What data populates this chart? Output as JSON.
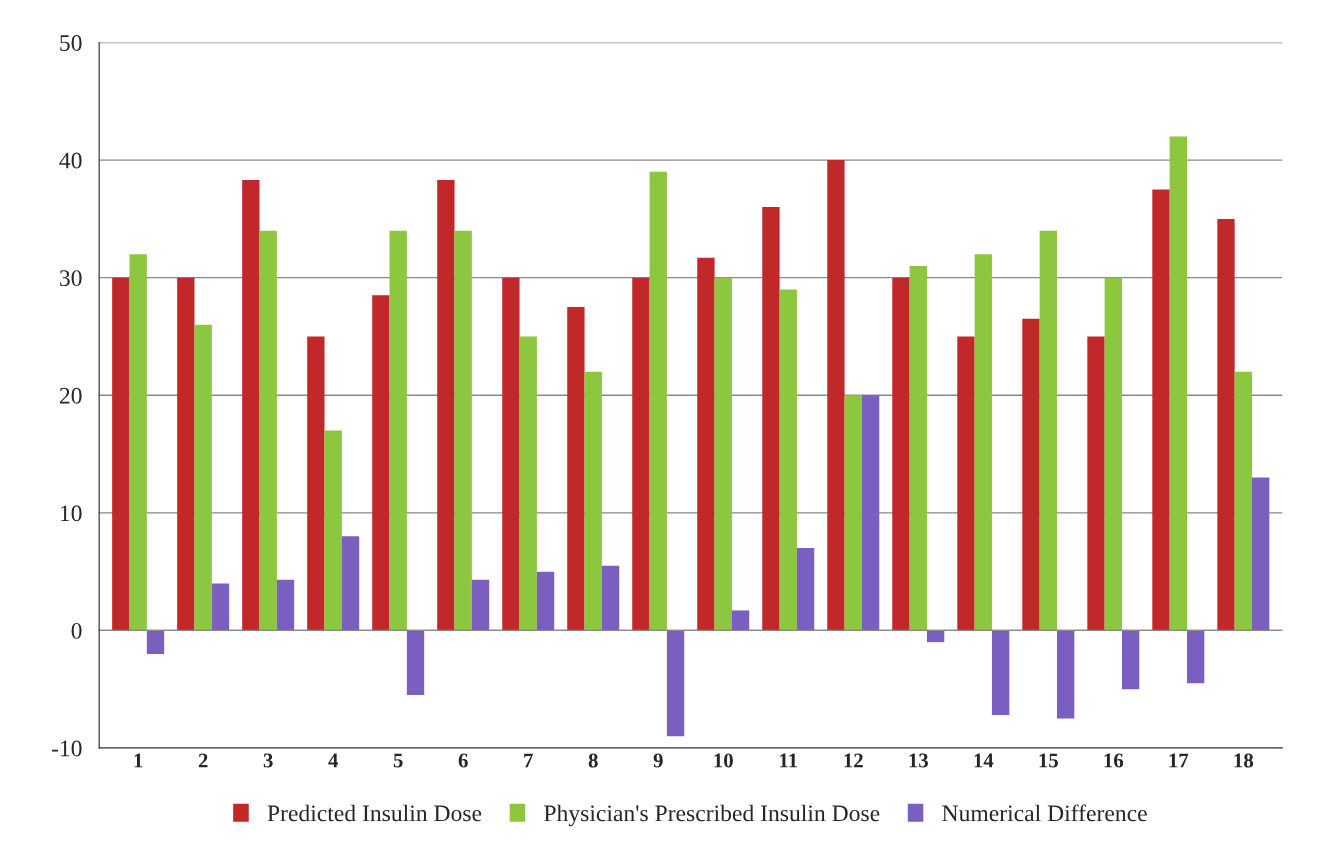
{
  "chart_data": {
    "type": "bar",
    "categories": [
      "1",
      "2",
      "3",
      "4",
      "5",
      "6",
      "7",
      "8",
      "9",
      "10",
      "11",
      "12",
      "13",
      "14",
      "15",
      "16",
      "17",
      "18"
    ],
    "series": [
      {
        "name": "Predicted Insulin Dose",
        "color": "#c0282a",
        "values": [
          30,
          30,
          38.3,
          25,
          28.5,
          38.3,
          30,
          27.5,
          30,
          31.7,
          36,
          40,
          30,
          25,
          26.5,
          25,
          37.5,
          35
        ]
      },
      {
        "name": "Physician's Prescribed Insulin Dose",
        "color": "#8dc63f",
        "values": [
          32,
          26,
          34,
          17,
          34,
          34,
          25,
          22,
          39,
          30,
          29,
          20,
          31,
          32,
          34,
          30,
          42,
          22
        ]
      },
      {
        "name": "Numerical Difference",
        "color": "#7b5fc0",
        "values": [
          -2,
          4,
          4.3,
          8,
          -5.5,
          4.3,
          5,
          5.5,
          -9,
          1.7,
          7,
          20,
          -1,
          -7.2,
          -7.5,
          -5,
          -4.5,
          13
        ]
      }
    ],
    "ylim": [
      -10,
      50
    ],
    "yticks": [
      -10,
      0,
      10,
      20,
      30,
      40,
      50
    ],
    "grid": "y",
    "legend": "bottom"
  }
}
